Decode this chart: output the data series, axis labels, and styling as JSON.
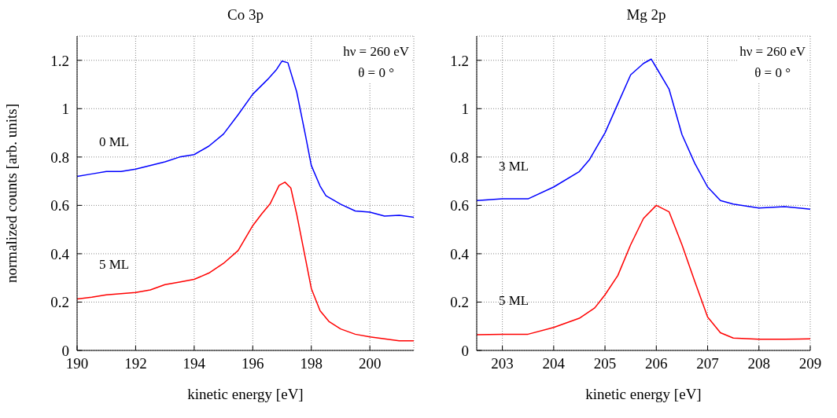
{
  "chart_data": [
    {
      "type": "line",
      "title": "Co 3p",
      "xlabel": "kinetic energy [eV]",
      "ylabel": "normalized counts [arb. units]",
      "xlim": [
        190,
        201.5
      ],
      "xticks": [
        190,
        192,
        194,
        196,
        198,
        200
      ],
      "ylim": [
        0,
        1.3
      ],
      "yticks": [
        0,
        0.2,
        0.4,
        0.6,
        0.8,
        1,
        1.2
      ],
      "grid": true,
      "marker": "none",
      "line_style": "solid",
      "annotations": [
        "hν = 260 eV",
        "θ = 0 °"
      ],
      "series": [
        {
          "name": "0 ML",
          "color": "#0000ff",
          "x": [
            190,
            190.5,
            191,
            191.5,
            192,
            193,
            193.5,
            194,
            194.5,
            195,
            195.5,
            196,
            196.5,
            196.8,
            197,
            197.2,
            197.5,
            197.8,
            198,
            198.3,
            198.5,
            199,
            199.5,
            200,
            200.5,
            201,
            201.5
          ],
          "values": [
            0.72,
            0.73,
            0.74,
            0.74,
            0.75,
            0.78,
            0.8,
            0.81,
            0.845,
            0.895,
            0.975,
            1.06,
            1.12,
            1.16,
            1.197,
            1.19,
            1.07,
            0.89,
            0.765,
            0.68,
            0.64,
            0.605,
            0.577,
            0.572,
            0.556,
            0.559,
            0.551
          ]
        },
        {
          "name": "5 ML",
          "color": "#ff0000",
          "x": [
            190,
            190.5,
            191,
            191.5,
            192,
            192.5,
            193,
            193.5,
            194,
            194.5,
            195,
            195.5,
            196,
            196.3,
            196.6,
            196.9,
            197.1,
            197.3,
            197.5,
            197.8,
            198,
            198.3,
            198.6,
            199,
            199.5,
            200,
            200.5,
            201,
            201.5
          ],
          "values": [
            0.213,
            0.22,
            0.23,
            0.235,
            0.24,
            0.25,
            0.272,
            0.283,
            0.294,
            0.32,
            0.36,
            0.413,
            0.516,
            0.564,
            0.608,
            0.683,
            0.696,
            0.672,
            0.564,
            0.38,
            0.256,
            0.164,
            0.12,
            0.089,
            0.067,
            0.056,
            0.048,
            0.04,
            0.04
          ]
        }
      ]
    },
    {
      "type": "line",
      "title": "Mg 2p",
      "xlabel": "kinetic energy [eV]",
      "xlim": [
        202.5,
        209
      ],
      "xticks": [
        203,
        204,
        205,
        206,
        207,
        208,
        209
      ],
      "ylim": [
        0,
        1.3
      ],
      "yticks": [
        0,
        0.2,
        0.4,
        0.6,
        0.8,
        1,
        1.2
      ],
      "grid": true,
      "marker": "none",
      "line_style": "solid",
      "annotations": [
        "hν = 260 eV",
        "θ = 0 °"
      ],
      "series": [
        {
          "name": "3 ML",
          "color": "#0000ff",
          "x": [
            202.5,
            203,
            203.5,
            204,
            204.5,
            204.7,
            205,
            205.25,
            205.5,
            205.75,
            205.9,
            206,
            206.25,
            206.5,
            206.75,
            207,
            207.25,
            207.5,
            208,
            208.5,
            209
          ],
          "values": [
            0.62,
            0.627,
            0.627,
            0.676,
            0.74,
            0.79,
            0.9,
            1.02,
            1.14,
            1.187,
            1.205,
            1.17,
            1.08,
            0.893,
            0.774,
            0.676,
            0.62,
            0.605,
            0.589,
            0.595,
            0.584
          ]
        },
        {
          "name": "5 ML",
          "color": "#ff0000",
          "x": [
            202.5,
            203,
            203.5,
            204,
            204.5,
            204.8,
            205,
            205.25,
            205.5,
            205.75,
            206,
            206.25,
            206.5,
            206.75,
            207,
            207.25,
            207.5,
            208,
            208.5,
            209
          ],
          "values": [
            0.065,
            0.067,
            0.067,
            0.095,
            0.133,
            0.176,
            0.23,
            0.31,
            0.437,
            0.546,
            0.6,
            0.573,
            0.437,
            0.285,
            0.138,
            0.073,
            0.051,
            0.046,
            0.046,
            0.048
          ]
        }
      ]
    }
  ]
}
